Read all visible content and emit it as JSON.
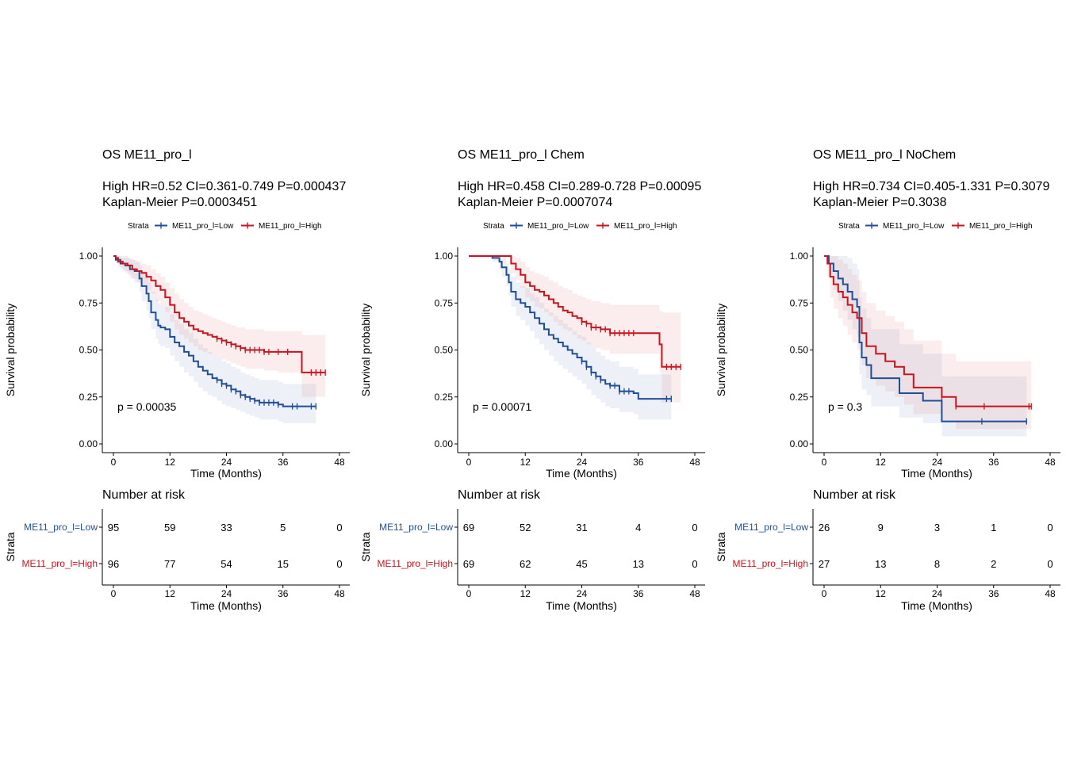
{
  "colors": {
    "low": "#1f4e96",
    "high": "#c8141e"
  },
  "chart_data": [
    {
      "type": "line",
      "title": "OS ME11_pro_l",
      "subtitle": [
        "High HR=0.52 CI=0.361-0.749 P=0.000437",
        "Kaplan-Meier P=0.0003451"
      ],
      "legend_title": "Strata",
      "xlabel": "Time (Months)",
      "ylabel": "Survival probability",
      "xticks": [
        0,
        12,
        24,
        36,
        48
      ],
      "yticks": [
        "0.00",
        "0.25",
        "0.50",
        "0.75",
        "1.00"
      ],
      "xlim": [
        0,
        48
      ],
      "ylim": [
        0,
        1
      ],
      "pvalue": "p = 0.00035",
      "risk_title": "Number at risk",
      "risk_ylabel": "Strata",
      "series": [
        {
          "name": "ME11_pro_l=Low",
          "color_key": "low",
          "x": [
            0,
            0.5,
            1.5,
            2.5,
            3.5,
            4.5,
            5.5,
            6,
            7,
            7.5,
            8,
            9,
            9.5,
            10,
            11,
            12,
            13,
            14,
            15,
            16,
            17,
            18,
            19,
            20,
            21,
            22,
            23,
            24,
            25,
            26,
            27,
            28,
            29,
            30,
            31,
            32,
            33,
            35,
            36,
            38,
            40,
            43
          ],
          "y": [
            1.0,
            0.98,
            0.96,
            0.95,
            0.93,
            0.92,
            0.88,
            0.84,
            0.8,
            0.76,
            0.7,
            0.66,
            0.63,
            0.62,
            0.61,
            0.57,
            0.54,
            0.52,
            0.49,
            0.47,
            0.44,
            0.41,
            0.39,
            0.37,
            0.35,
            0.34,
            0.32,
            0.31,
            0.29,
            0.28,
            0.26,
            0.25,
            0.24,
            0.23,
            0.22,
            0.22,
            0.22,
            0.21,
            0.2,
            0.2,
            0.2,
            0.2
          ],
          "lower": [
            1.0,
            0.96,
            0.93,
            0.91,
            0.88,
            0.86,
            0.81,
            0.76,
            0.71,
            0.67,
            0.61,
            0.56,
            0.53,
            0.52,
            0.51,
            0.47,
            0.44,
            0.41,
            0.38,
            0.36,
            0.33,
            0.3,
            0.28,
            0.26,
            0.25,
            0.23,
            0.21,
            0.2,
            0.19,
            0.18,
            0.17,
            0.16,
            0.15,
            0.14,
            0.13,
            0.13,
            0.13,
            0.12,
            0.11,
            0.11,
            0.11,
            0.11
          ],
          "upper": [
            1.0,
            1.0,
            0.99,
            0.99,
            0.98,
            0.97,
            0.95,
            0.92,
            0.89,
            0.86,
            0.81,
            0.77,
            0.75,
            0.74,
            0.73,
            0.69,
            0.66,
            0.64,
            0.61,
            0.59,
            0.56,
            0.53,
            0.51,
            0.49,
            0.47,
            0.46,
            0.44,
            0.43,
            0.41,
            0.4,
            0.38,
            0.37,
            0.36,
            0.35,
            0.34,
            0.34,
            0.34,
            0.33,
            0.32,
            0.32,
            0.32,
            0.32
          ],
          "censor": [
            22,
            23,
            24,
            25,
            26,
            27,
            28,
            29,
            30,
            31,
            32,
            33,
            34,
            35,
            38,
            39,
            42,
            43
          ],
          "risk": [
            "95",
            "59",
            "33",
            "5",
            "0"
          ]
        },
        {
          "name": "ME11_pro_l=High",
          "color_key": "high",
          "x": [
            0,
            0.5,
            1,
            2,
            3,
            4,
            5,
            6,
            7,
            8,
            9,
            10,
            11,
            12,
            13,
            14,
            15,
            16,
            17,
            18,
            19,
            20,
            21,
            22,
            23,
            24,
            25,
            26,
            27,
            28,
            29,
            30,
            32,
            35,
            36,
            38,
            40,
            42,
            45
          ],
          "y": [
            1.0,
            0.99,
            0.97,
            0.96,
            0.95,
            0.93,
            0.92,
            0.91,
            0.89,
            0.87,
            0.84,
            0.82,
            0.78,
            0.74,
            0.7,
            0.67,
            0.65,
            0.63,
            0.61,
            0.6,
            0.59,
            0.58,
            0.57,
            0.56,
            0.55,
            0.54,
            0.53,
            0.52,
            0.51,
            0.5,
            0.5,
            0.5,
            0.49,
            0.49,
            0.49,
            0.49,
            0.38,
            0.38,
            0.38
          ],
          "lower": [
            1.0,
            0.97,
            0.94,
            0.92,
            0.9,
            0.88,
            0.86,
            0.85,
            0.82,
            0.8,
            0.76,
            0.74,
            0.7,
            0.65,
            0.61,
            0.58,
            0.56,
            0.54,
            0.52,
            0.5,
            0.49,
            0.48,
            0.47,
            0.46,
            0.45,
            0.44,
            0.43,
            0.42,
            0.41,
            0.4,
            0.4,
            0.4,
            0.39,
            0.38,
            0.38,
            0.38,
            0.25,
            0.25,
            0.25
          ],
          "upper": [
            1.0,
            1.0,
            1.0,
            1.0,
            0.99,
            0.98,
            0.97,
            0.96,
            0.95,
            0.93,
            0.91,
            0.89,
            0.86,
            0.83,
            0.8,
            0.77,
            0.75,
            0.73,
            0.71,
            0.7,
            0.69,
            0.68,
            0.67,
            0.66,
            0.65,
            0.64,
            0.63,
            0.62,
            0.62,
            0.61,
            0.61,
            0.61,
            0.6,
            0.6,
            0.6,
            0.6,
            0.58,
            0.58,
            0.58
          ],
          "censor": [
            22,
            23,
            24,
            25,
            26,
            27,
            28,
            29,
            30,
            31,
            32,
            33,
            35,
            37,
            42,
            43,
            44,
            45
          ],
          "risk": [
            "96",
            "77",
            "54",
            "15",
            "0"
          ]
        }
      ]
    },
    {
      "type": "line",
      "title": "OS ME11_pro_l Chem",
      "subtitle": [
        "High HR=0.458 CI=0.289-0.728 P=0.00095",
        "Kaplan-Meier P=0.0007074"
      ],
      "legend_title": "Strata",
      "xlabel": "Time (Months)",
      "ylabel": "Survival probability",
      "xticks": [
        0,
        12,
        24,
        36,
        48
      ],
      "yticks": [
        "0.00",
        "0.25",
        "0.50",
        "0.75",
        "1.00"
      ],
      "xlim": [
        0,
        48
      ],
      "ylim": [
        0,
        1
      ],
      "pvalue": "p = 0.00071",
      "risk_title": "Number at risk",
      "risk_ylabel": "Strata",
      "series": [
        {
          "name": "ME11_pro_l=Low",
          "color_key": "low",
          "x": [
            0,
            5,
            6.5,
            7,
            8,
            8.5,
            9,
            10,
            11,
            12,
            13,
            14,
            15,
            16,
            17,
            18,
            19,
            20,
            21,
            22,
            23,
            24,
            25,
            26,
            27,
            28,
            29,
            30,
            31,
            32,
            33,
            34,
            35,
            36,
            40,
            43
          ],
          "y": [
            1.0,
            0.99,
            0.97,
            0.94,
            0.9,
            0.86,
            0.81,
            0.77,
            0.75,
            0.73,
            0.7,
            0.67,
            0.64,
            0.61,
            0.58,
            0.56,
            0.54,
            0.52,
            0.5,
            0.48,
            0.46,
            0.44,
            0.41,
            0.38,
            0.36,
            0.34,
            0.32,
            0.31,
            0.31,
            0.28,
            0.28,
            0.28,
            0.27,
            0.24,
            0.24,
            0.24
          ],
          "lower": [
            1.0,
            0.97,
            0.93,
            0.89,
            0.84,
            0.79,
            0.73,
            0.68,
            0.66,
            0.63,
            0.6,
            0.56,
            0.53,
            0.5,
            0.47,
            0.44,
            0.42,
            0.4,
            0.38,
            0.36,
            0.34,
            0.32,
            0.29,
            0.26,
            0.24,
            0.22,
            0.2,
            0.19,
            0.19,
            0.17,
            0.17,
            0.17,
            0.16,
            0.13,
            0.13,
            0.13
          ],
          "upper": [
            1.0,
            1.0,
            1.0,
            0.99,
            0.96,
            0.93,
            0.89,
            0.86,
            0.84,
            0.83,
            0.8,
            0.78,
            0.75,
            0.72,
            0.7,
            0.68,
            0.66,
            0.64,
            0.62,
            0.6,
            0.58,
            0.57,
            0.54,
            0.51,
            0.49,
            0.47,
            0.45,
            0.44,
            0.44,
            0.41,
            0.41,
            0.41,
            0.4,
            0.37,
            0.37,
            0.37
          ],
          "censor": [
            24,
            25,
            26,
            27,
            28,
            30,
            31,
            32,
            33,
            34,
            42,
            43
          ],
          "risk": [
            "69",
            "52",
            "31",
            "4",
            "0"
          ]
        },
        {
          "name": "ME11_pro_l=High",
          "color_key": "high",
          "x": [
            0,
            8.5,
            9,
            10,
            11,
            12,
            13,
            14,
            15,
            16,
            17,
            18,
            19,
            20,
            21,
            22,
            23,
            24,
            25,
            26,
            28,
            30,
            40,
            40.5,
            41,
            45
          ],
          "y": [
            1.0,
            1.0,
            0.96,
            0.93,
            0.9,
            0.86,
            0.84,
            0.82,
            0.81,
            0.79,
            0.77,
            0.75,
            0.73,
            0.71,
            0.7,
            0.68,
            0.67,
            0.65,
            0.64,
            0.62,
            0.61,
            0.59,
            0.59,
            0.53,
            0.41,
            0.41
          ],
          "lower": [
            1.0,
            1.0,
            0.91,
            0.87,
            0.83,
            0.78,
            0.76,
            0.73,
            0.72,
            0.7,
            0.68,
            0.65,
            0.63,
            0.61,
            0.6,
            0.58,
            0.56,
            0.55,
            0.53,
            0.51,
            0.5,
            0.48,
            0.48,
            0.38,
            0.22,
            0.22
          ],
          "upper": [
            1.0,
            1.0,
            1.0,
            0.99,
            0.97,
            0.94,
            0.92,
            0.91,
            0.9,
            0.89,
            0.87,
            0.86,
            0.84,
            0.83,
            0.82,
            0.8,
            0.79,
            0.78,
            0.77,
            0.76,
            0.75,
            0.74,
            0.74,
            0.71,
            0.7,
            0.7
          ],
          "censor": [
            24,
            25,
            26,
            27,
            28,
            29,
            30,
            31,
            32,
            33,
            34,
            35,
            42,
            43,
            44,
            45
          ],
          "risk": [
            "69",
            "62",
            "45",
            "13",
            "0"
          ]
        }
      ]
    },
    {
      "type": "line",
      "title": "OS ME11_pro_l NoChem",
      "subtitle": [
        "High HR=0.734 CI=0.405-1.331 P=0.3079",
        "Kaplan-Meier P=0.3038"
      ],
      "legend_title": "Strata",
      "xlabel": "Time (Months)",
      "ylabel": "Survival probability",
      "xticks": [
        0,
        12,
        24,
        36,
        48
      ],
      "yticks": [
        "0.00",
        "0.25",
        "0.50",
        "0.75",
        "1.00"
      ],
      "xlim": [
        0,
        48
      ],
      "ylim": [
        0,
        1
      ],
      "pvalue": "p = 0.3",
      "risk_title": "Number at risk",
      "risk_ylabel": "Strata",
      "series": [
        {
          "name": "ME11_pro_l=Low",
          "color_key": "low",
          "x": [
            0,
            1,
            2,
            3,
            4,
            5,
            6,
            7,
            7.5,
            8,
            9,
            10,
            13,
            16,
            21,
            25,
            34,
            43
          ],
          "y": [
            1.0,
            0.96,
            0.92,
            0.88,
            0.85,
            0.81,
            0.77,
            0.73,
            0.54,
            0.46,
            0.42,
            0.35,
            0.35,
            0.27,
            0.23,
            0.12,
            0.12,
            0.12
          ],
          "lower": [
            1.0,
            0.89,
            0.82,
            0.76,
            0.71,
            0.66,
            0.61,
            0.57,
            0.37,
            0.29,
            0.26,
            0.2,
            0.2,
            0.14,
            0.11,
            0.04,
            0.04,
            0.04
          ],
          "upper": [
            1.0,
            1.0,
            1.0,
            1.0,
            1.0,
            0.99,
            0.96,
            0.93,
            0.78,
            0.72,
            0.67,
            0.61,
            0.61,
            0.53,
            0.48,
            0.36,
            0.36,
            0.36
          ],
          "censor": [
            33.5,
            43
          ],
          "risk": [
            "26",
            "9",
            "3",
            "1",
            "0"
          ]
        },
        {
          "name": "ME11_pro_l=High",
          "color_key": "high",
          "x": [
            0,
            0.7,
            1.3,
            2,
            3,
            4,
            5,
            6,
            7,
            8,
            9,
            11,
            13,
            15,
            17,
            19,
            25,
            26,
            28,
            44
          ],
          "y": [
            1.0,
            0.96,
            0.89,
            0.85,
            0.81,
            0.78,
            0.74,
            0.7,
            0.67,
            0.59,
            0.52,
            0.48,
            0.44,
            0.41,
            0.37,
            0.3,
            0.25,
            0.25,
            0.2,
            0.2
          ],
          "lower": [
            1.0,
            0.89,
            0.78,
            0.72,
            0.67,
            0.63,
            0.58,
            0.54,
            0.5,
            0.42,
            0.35,
            0.31,
            0.28,
            0.25,
            0.21,
            0.16,
            0.12,
            0.12,
            0.08,
            0.08
          ],
          "upper": [
            1.0,
            1.0,
            1.0,
            1.0,
            0.98,
            0.96,
            0.93,
            0.9,
            0.87,
            0.81,
            0.75,
            0.71,
            0.68,
            0.65,
            0.61,
            0.55,
            0.48,
            0.48,
            0.44,
            0.44
          ],
          "censor": [
            25,
            28,
            34,
            43.5,
            44
          ],
          "risk": [
            "27",
            "13",
            "8",
            "2",
            "0"
          ]
        }
      ]
    }
  ]
}
